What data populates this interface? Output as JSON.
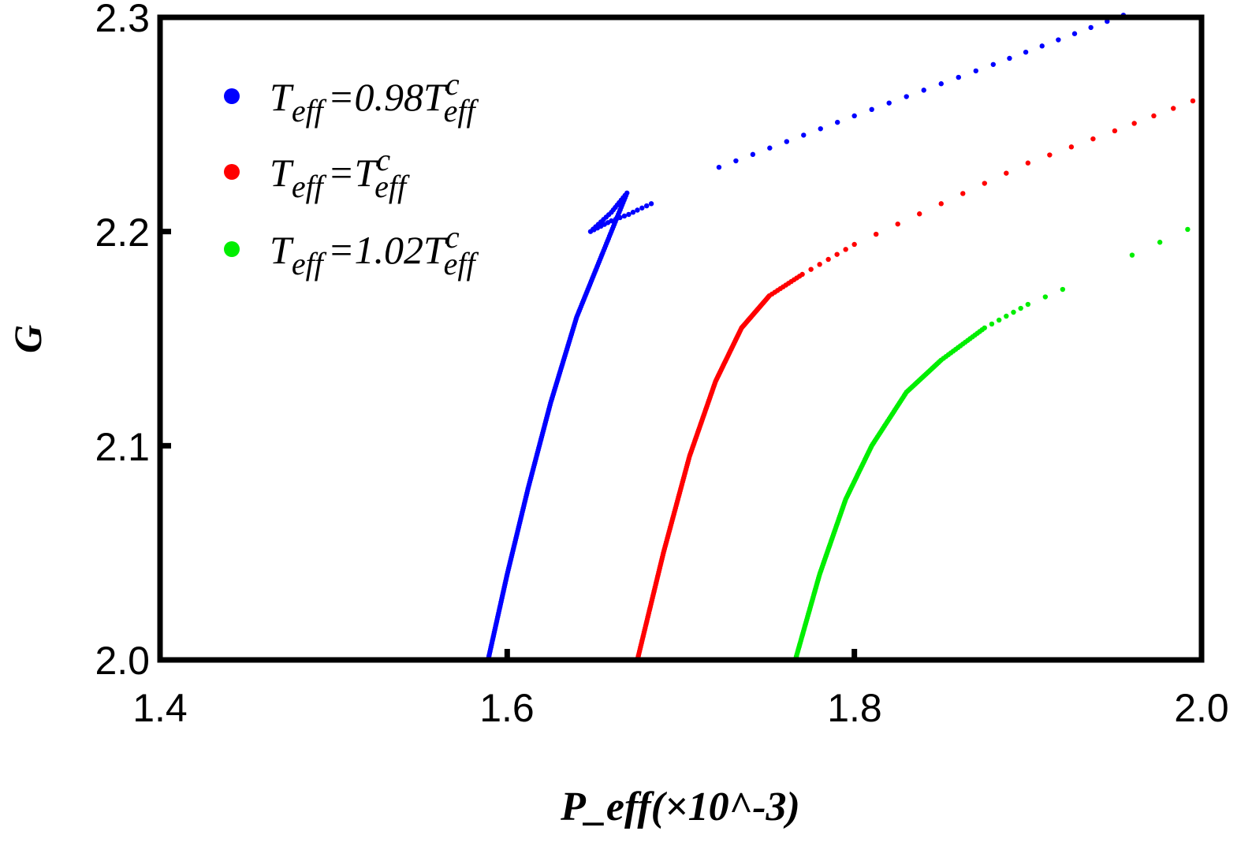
{
  "chart_data": {
    "type": "scatter",
    "title": "",
    "xlabel": "P_eff(×10^-3)",
    "xlabel_parts": {
      "main": "P",
      "sub": "eff",
      "paren": "(×10",
      "sup": "−3",
      "close": ")"
    },
    "ylabel": "G",
    "xlim": [
      1.4,
      2.0
    ],
    "ylim": [
      2.0,
      2.3
    ],
    "xticks": [
      "1.4",
      "1.6",
      "1.8",
      "2.0"
    ],
    "yticks": [
      "2.0",
      "2.1",
      "2.2",
      "2.3"
    ],
    "xtick_values": [
      1.4,
      1.6,
      1.8,
      2.0
    ],
    "ytick_values": [
      2.0,
      2.1,
      2.2,
      2.3
    ],
    "grid": false,
    "legend_position": "top-left",
    "series": [
      {
        "name": "T_eff=0.98T^c_eff",
        "legend": {
          "prefix": "T",
          "sub1": "eff",
          "eq": "=0.98T",
          "sup": "c",
          "sub2": "eff"
        },
        "color": "#0000ff",
        "points": [
          [
            1.589,
            2.0
          ],
          [
            1.6,
            2.04
          ],
          [
            1.612,
            2.08
          ],
          [
            1.625,
            2.12
          ],
          [
            1.64,
            2.16
          ],
          [
            1.655,
            2.19
          ],
          [
            1.669,
            2.218
          ],
          [
            1.66,
            2.209
          ],
          [
            1.648,
            2.2
          ],
          [
            1.66,
            2.205
          ],
          [
            1.67,
            2.208
          ],
          [
            1.675,
            2.21
          ],
          [
            1.683,
            2.213
          ],
          [
            1.722,
            2.23
          ],
          [
            1.8,
            2.254
          ],
          [
            1.88,
            2.278
          ],
          [
            1.955,
            2.301
          ]
        ],
        "density": [
          40,
          40,
          40,
          40,
          30,
          25,
          8,
          8,
          6,
          4,
          2,
          3,
          1,
          8,
          8,
          8
        ]
      },
      {
        "name": "T_eff=T^c_eff",
        "legend": {
          "prefix": "T",
          "sub1": "eff",
          "eq": "=T",
          "sup": "c",
          "sub2": "eff"
        },
        "color": "#ff0000",
        "points": [
          [
            1.675,
            2.0
          ],
          [
            1.69,
            2.05
          ],
          [
            1.705,
            2.095
          ],
          [
            1.72,
            2.13
          ],
          [
            1.735,
            2.155
          ],
          [
            1.751,
            2.17
          ],
          [
            1.77,
            2.18
          ],
          [
            1.8,
            2.194
          ],
          [
            1.85,
            2.213
          ],
          [
            1.9,
            2.232
          ],
          [
            1.95,
            2.247
          ],
          [
            1.995,
            2.261
          ]
        ],
        "density": [
          50,
          45,
          40,
          35,
          30,
          12,
          6,
          4,
          4,
          4,
          4
        ]
      },
      {
        "name": "T_eff=1.02T^c_eff",
        "legend": {
          "prefix": "T",
          "sub1": "eff",
          "eq": "=1.02T",
          "sup": "c",
          "sub2": "eff"
        },
        "color": "#00ee00",
        "points": [
          [
            1.766,
            2.0
          ],
          [
            1.78,
            2.04
          ],
          [
            1.795,
            2.075
          ],
          [
            1.81,
            2.1
          ],
          [
            1.83,
            2.125
          ],
          [
            1.85,
            2.14
          ],
          [
            1.875,
            2.155
          ],
          [
            1.9,
            2.166
          ],
          [
            1.92,
            2.173
          ],
          [
            1.96,
            2.189
          ],
          [
            1.992,
            2.201
          ]
        ],
        "density": [
          45,
          40,
          30,
          30,
          25,
          18,
          6,
          2,
          1,
          2
        ]
      }
    ]
  }
}
